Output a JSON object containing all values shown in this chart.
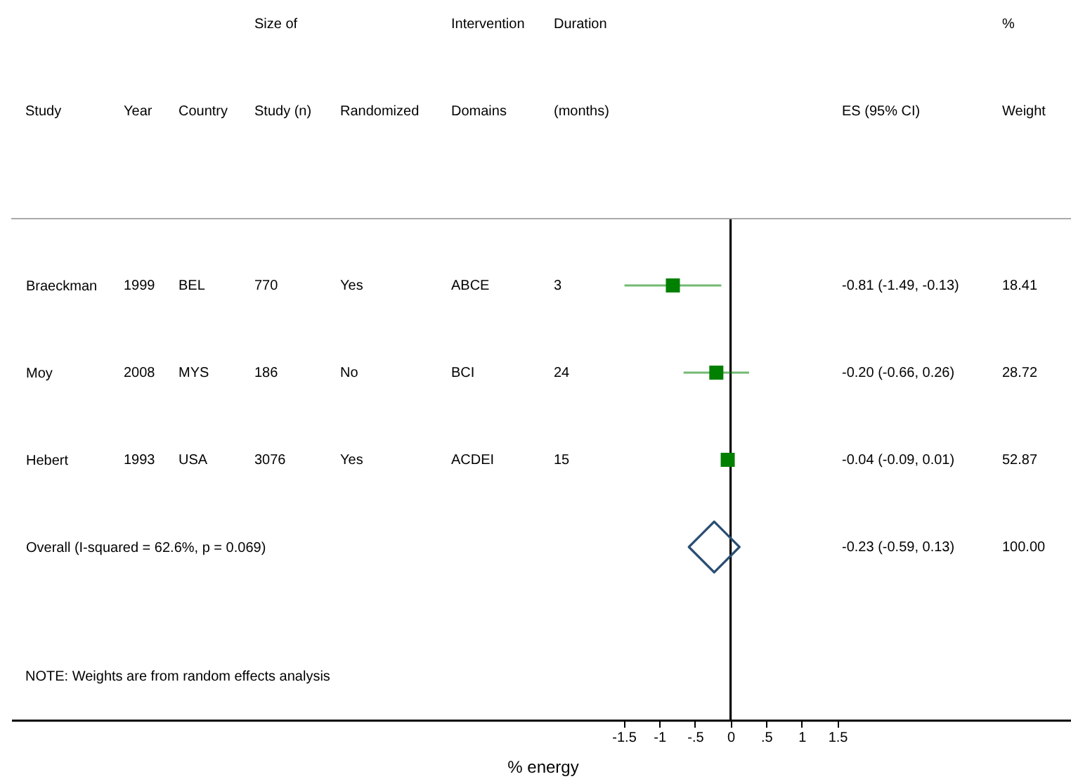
{
  "chart_data": {
    "type": "scatter",
    "orientation": "horizontal",
    "categories": [
      "Braeckman",
      "Moy",
      "Hebert",
      "Overall  (I-squared = 62.6%, p = 0.069)"
    ],
    "series": [
      {
        "type": "scatter",
        "marker": "square",
        "color": "#008000",
        "values": [
          -0.81,
          -0.2,
          -0.04,
          null
        ],
        "errors": [
          [
            -1.49,
            -0.13
          ],
          [
            -0.66,
            0.26
          ],
          [
            -0.09,
            0.01
          ],
          null
        ]
      },
      {
        "type": "scatter",
        "marker": "diamond",
        "color": "#2b4e73",
        "values": [
          null,
          null,
          null,
          -0.23
        ]
      }
    ],
    "xlabel": "% energy",
    "xlim": [
      -10.1,
      4.78
    ],
    "xticks": [
      -1.5,
      -1,
      {
        "value": -0.5,
        "label": "-.5"
      },
      0,
      {
        "value": 0.5,
        "label": ".5"
      },
      1,
      1.5
    ],
    "ref_lines": [
      {
        "axis": "x",
        "value": 0,
        "color": "#000000"
      }
    ],
    "annotations": [
      "Size of",
      "Intervention",
      "Duration",
      "%",
      "Study",
      "Year",
      "Country",
      "Study (n)",
      "Randomized",
      "Domains",
      "(months)",
      "ES (95% CI)",
      "Weight",
      "1999",
      "BEL",
      "770",
      "Yes",
      "ABCE",
      "3",
      "-0.81 (-1.49, -0.13)",
      "18.41",
      "2008",
      "MYS",
      "186",
      "No",
      "BCI",
      "24",
      "-0.20 (-0.66, 0.26)",
      "28.72",
      "1993",
      "USA",
      "3076",
      "Yes",
      "ACDEI",
      "15",
      "-0.04 (-0.09, 0.01)",
      "52.87",
      "-0.23 (-0.59, 0.13)",
      "100.00",
      "NOTE: Weights are from random effects analysis"
    ],
    "legend": false,
    "grid": false
  }
}
